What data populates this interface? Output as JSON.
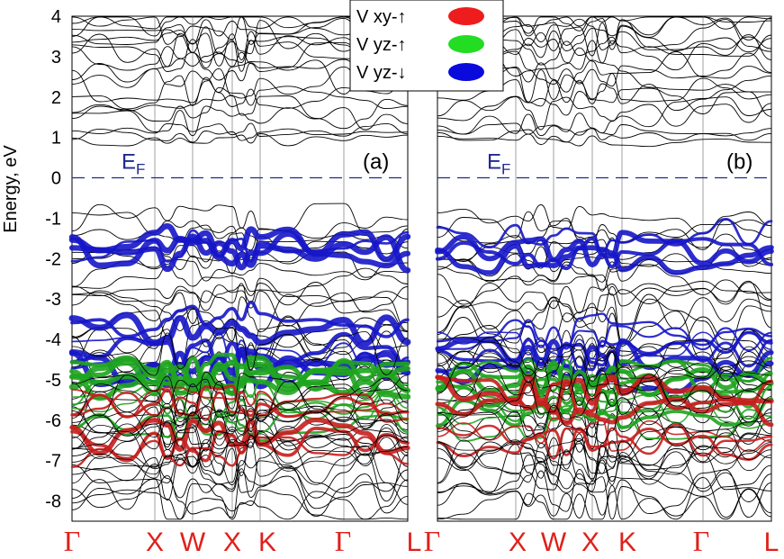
{
  "chart_data": [
    {
      "panel_label": "(a)",
      "type": "line",
      "ylabel": "Energy, eV",
      "ylim": [
        -8.5,
        4
      ],
      "yticks": [
        4,
        3,
        2,
        1,
        0,
        -1,
        -2,
        -3,
        -4,
        -5,
        -6,
        -7,
        -8
      ],
      "kpoints": [
        "Γ",
        "X",
        "W",
        "X",
        "K",
        "Γ",
        "L"
      ],
      "fermi_label": {
        "main": "E",
        "sub": "F"
      },
      "fermi_level": 0,
      "legend": [
        {
          "name": "V xy-↑",
          "color": "#ee1c1c"
        },
        {
          "name": "V yz-↑",
          "color": "#22dd22"
        },
        {
          "name": "V yz-↓",
          "color": "#0a0adc"
        }
      ],
      "grid": true
    },
    {
      "panel_label": "(b)",
      "type": "line",
      "ylim": [
        -8.5,
        4
      ],
      "kpoints": [
        "Γ",
        "X",
        "W",
        "X",
        "K",
        "Γ",
        "L"
      ],
      "fermi_label": {
        "main": "E",
        "sub": "F"
      },
      "fermi_level": 0,
      "grid": true
    }
  ],
  "colors": {
    "kpoint_label": "#e0201b",
    "fermi_line": "#1f2a8f",
    "band_line": "#000000",
    "fat_xy_up": "#c81e1e",
    "fat_yz_up": "#1fa51f",
    "fat_yz_down": "#1616c8"
  }
}
